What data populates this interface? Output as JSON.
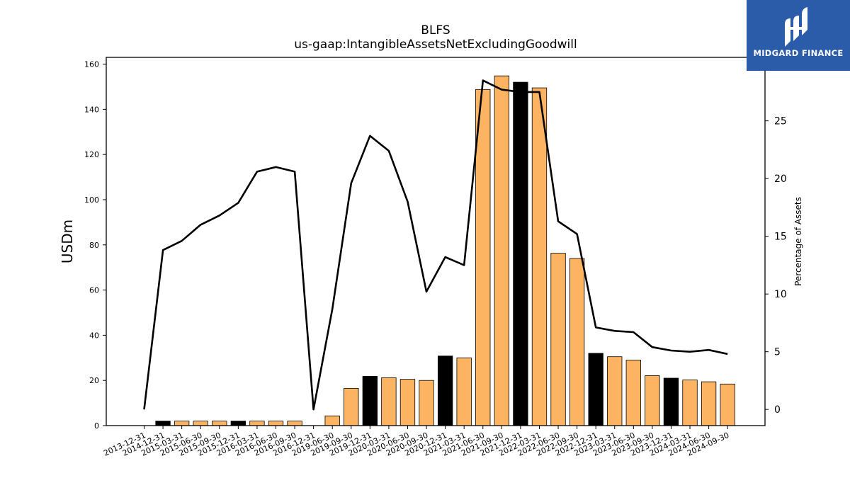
{
  "logo": {
    "text": "MIDGARD FINANCE",
    "background": "#2a5caa"
  },
  "chart_data": {
    "type": "bar",
    "title": "BLFS",
    "subtitle": "us-gaap:IntangibleAssetsNetExcludingGoodwill",
    "ylabel": "USDm",
    "y2label": "Percentage of Assets",
    "ylim": [
      0,
      163
    ],
    "y2lim": [
      -1.4,
      30.5
    ],
    "yticks": [
      0,
      20,
      40,
      60,
      80,
      100,
      120,
      140,
      160
    ],
    "y2ticks": [
      0,
      5,
      10,
      15,
      20,
      25
    ],
    "categories": [
      "2013-12-31",
      "2014-12-31",
      "2015-03-31",
      "2015-06-30",
      "2015-09-30",
      "2015-12-31",
      "2016-03-31",
      "2016-06-30",
      "2016-09-30",
      "2016-12-31",
      "2019-06-30",
      "2019-09-30",
      "2019-12-31",
      "2020-03-31",
      "2020-06-30",
      "2020-09-30",
      "2020-12-31",
      "2021-03-31",
      "2021-06-30",
      "2021-09-30",
      "2021-12-31",
      "2022-03-31",
      "2022-06-30",
      "2022-09-30",
      "2022-12-31",
      "2023-03-31",
      "2023-06-30",
      "2023-09-30",
      "2023-12-31",
      "2024-03-31",
      "2024-06-30",
      "2024-09-30"
    ],
    "series": [
      {
        "type": "bar",
        "axis": "left",
        "values": [
          0,
          2,
          2,
          2,
          2,
          2,
          2,
          2,
          2,
          0,
          4.3,
          16.5,
          21.8,
          21.2,
          20.5,
          20,
          30.8,
          30,
          148.8,
          154.8,
          152,
          149.5,
          76.3,
          74,
          32,
          30.5,
          29,
          22.1,
          21,
          20.2,
          19.4,
          18.4
        ],
        "colors": [
          "#fdb462",
          "#000000",
          "#fdb462",
          "#fdb462",
          "#fdb462",
          "#000000",
          "#fdb462",
          "#fdb462",
          "#fdb462",
          "#fdb462",
          "#fdb462",
          "#fdb462",
          "#000000",
          "#fdb462",
          "#fdb462",
          "#fdb462",
          "#000000",
          "#fdb462",
          "#fdb462",
          "#fdb462",
          "#000000",
          "#fdb462",
          "#fdb462",
          "#fdb462",
          "#000000",
          "#fdb462",
          "#fdb462",
          "#fdb462",
          "#000000",
          "#fdb462",
          "#fdb462",
          "#fdb462"
        ]
      },
      {
        "type": "line",
        "axis": "right",
        "values": [
          0,
          13.8,
          14.6,
          16,
          16.8,
          17.9,
          20.6,
          21,
          20.6,
          0,
          8.7,
          19.6,
          23.7,
          22.4,
          18,
          10.2,
          13.2,
          12.5,
          28.5,
          27.7,
          27.5,
          27.5,
          16.3,
          15.2,
          7.1,
          6.8,
          6.7,
          5.4,
          5.1,
          5.0,
          5.15,
          4.8
        ],
        "color": "#000000"
      }
    ],
    "grid": false
  }
}
